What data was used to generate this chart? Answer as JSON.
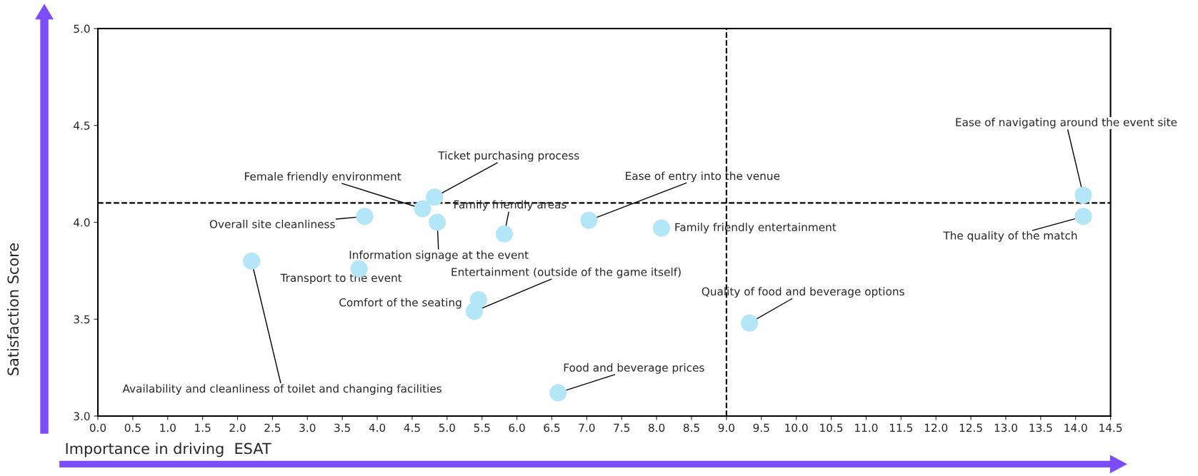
{
  "chart_data": {
    "type": "scatter",
    "xlabel": "Importance in driving  ESAT",
    "ylabel": "Satisfaction Score",
    "x": [
      2.2,
      3.74,
      3.82,
      4.65,
      4.82,
      4.86,
      5.82,
      7.03,
      5.45,
      5.39,
      6.59,
      8.07,
      9.33,
      14.11,
      14.11
    ],
    "series": [
      {
        "color": "#b3e6f7",
        "values": [
          3.8,
          3.76,
          4.03,
          4.07,
          4.13,
          4.0,
          3.94,
          4.01,
          3.6,
          3.54,
          3.12,
          3.97,
          3.48,
          4.14,
          4.03
        ]
      }
    ],
    "marker": "circle",
    "annotations": [
      {
        "text": "Availability and cleanliness of toilet and changing facilities",
        "x": 2.2,
        "y": 3.8
      },
      {
        "text": "Transport to the event",
        "x": 3.74,
        "y": 3.76
      },
      {
        "text": "Overall site cleanliness",
        "x": 3.82,
        "y": 4.03
      },
      {
        "text": "Female friendly environment",
        "x": 4.65,
        "y": 4.07
      },
      {
        "text": "Ticket purchasing process",
        "x": 4.82,
        "y": 4.13
      },
      {
        "text": "Information signage at the event",
        "x": 4.86,
        "y": 4.0
      },
      {
        "text": "Family friendly areas",
        "x": 5.82,
        "y": 3.94
      },
      {
        "text": "Ease of entry into the venue",
        "x": 7.03,
        "y": 4.01
      },
      {
        "text": "Comfort of the seating",
        "x": 5.45,
        "y": 3.6
      },
      {
        "text": "Entertainment (outside of the game itself)",
        "x": 5.39,
        "y": 3.54
      },
      {
        "text": "Food and beverage prices",
        "x": 6.59,
        "y": 3.12
      },
      {
        "text": "Family friendly entertainment",
        "x": 8.07,
        "y": 3.97
      },
      {
        "text": "Quality of food and beverage options",
        "x": 9.33,
        "y": 3.48
      },
      {
        "text": "Ease of navigating around the event site",
        "x": 14.11,
        "y": 4.14
      },
      {
        "text": "The quality of the match",
        "x": 14.11,
        "y": 4.03
      }
    ],
    "ref_lines": [
      {
        "axis": "x",
        "value": 9.0,
        "line_style": "dashed",
        "color": "#000000"
      },
      {
        "axis": "y",
        "value": 4.1,
        "line_style": "dashed",
        "color": "#000000"
      }
    ],
    "xlim": [
      0,
      14.5
    ],
    "xticks": [
      {
        "value": 0,
        "label": "0.0"
      },
      0.5,
      {
        "value": 1,
        "label": "1.0"
      },
      1.5,
      {
        "value": 2,
        "label": "2.0"
      },
      2.5,
      {
        "value": 3,
        "label": "3.0"
      },
      3.5,
      {
        "value": 4,
        "label": "4.0"
      },
      4.5,
      {
        "value": 5,
        "label": "5.0"
      },
      5.5,
      {
        "value": 6,
        "label": "6.0"
      },
      6.5,
      {
        "value": 7,
        "label": "7.0"
      },
      7.5,
      {
        "value": 8,
        "label": "8.0"
      },
      8.5,
      {
        "value": 9,
        "label": "9.0"
      },
      9.5,
      {
        "value": 10,
        "label": "10.0"
      },
      10.5,
      {
        "value": 11,
        "label": "11.0"
      },
      11.5,
      {
        "value": 12,
        "label": "12.0"
      },
      12.5,
      {
        "value": 13,
        "label": "13.0"
      },
      13.5,
      {
        "value": 14,
        "label": "14.0"
      },
      14.5
    ],
    "ylim": [
      3,
      5
    ],
    "yticks": [
      {
        "value": 3,
        "label": "3.0"
      },
      3.5,
      {
        "value": 4,
        "label": "4.0"
      },
      4.5,
      {
        "value": 5,
        "label": "5.0"
      }
    ],
    "grid": false,
    "legend": false
  }
}
